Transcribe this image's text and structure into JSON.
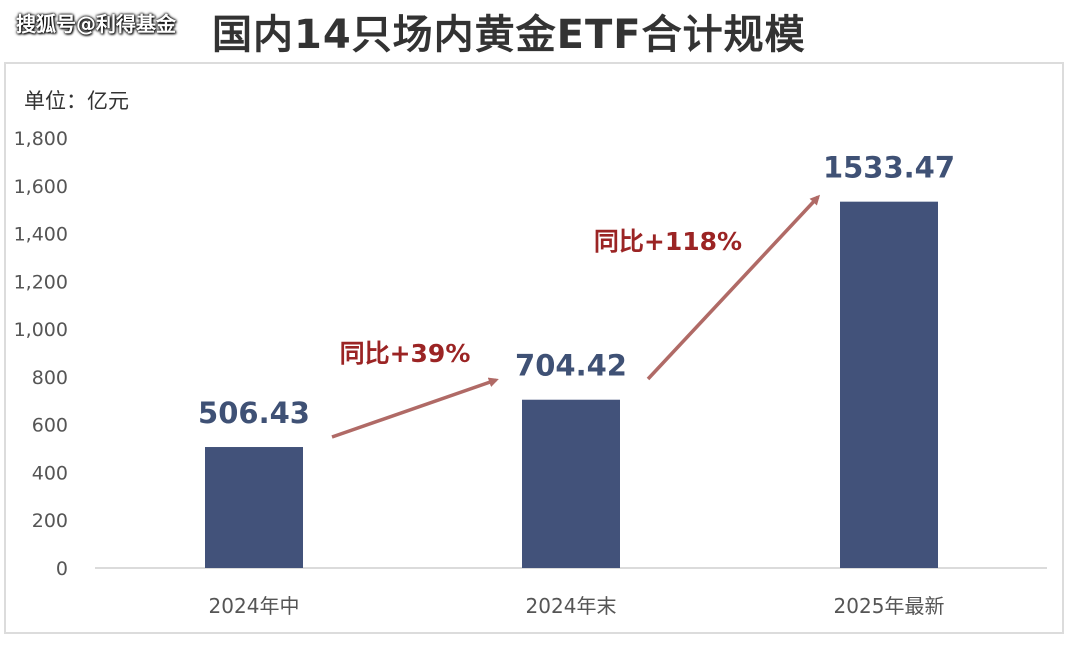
{
  "watermark": "搜狐号@利得基金",
  "chart_data": {
    "type": "bar",
    "title": "国内14只场内黄金ETF合计规模",
    "unit_label": "单位：亿元",
    "categories": [
      "2024年中",
      "2024年末",
      "2025年最新"
    ],
    "values": [
      506.43,
      704.42,
      1533.47
    ],
    "value_labels": [
      "506.43",
      "704.42",
      "1533.47"
    ],
    "ylim": [
      0,
      1800
    ],
    "yticks": [
      0,
      200,
      400,
      600,
      800,
      1000,
      1200,
      1400,
      1600,
      1800
    ],
    "ytick_labels": [
      "0",
      "200",
      "400",
      "600",
      "800",
      "1,000",
      "1,200",
      "1,400",
      "1,600",
      "1,800"
    ],
    "grid": false,
    "annotations": [
      "同比+39%",
      "同比+118%"
    ],
    "colors": {
      "bar": "#42527a",
      "value_label": "#3f5175",
      "annotation": "#9b2424",
      "arrow": "#b06a66",
      "axis_text": "#555555",
      "title": "#333333"
    }
  }
}
